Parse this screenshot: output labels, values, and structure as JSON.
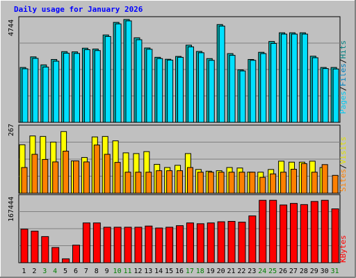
{
  "title": "Daily usage for January 2026",
  "colors": {
    "background": "#c0c0c0",
    "title": "#0000ff",
    "hits": "#00c0c0",
    "files": "#00a0c0",
    "pages": "#00c8f0",
    "visits": "#ffff00",
    "sites": "#ff8000",
    "kbytes": "#ff0000",
    "weekend_label": "#008000",
    "weekday_label": "#000000"
  },
  "legends": {
    "hits_files_pages": {
      "pages": "Pages",
      "sep1": "/",
      "files": "Files",
      "sep2": "/",
      "hits": "Hits"
    },
    "visits_sites": {
      "sites": "Sites",
      "sep": "/",
      "visits": "Visits"
    },
    "kbytes": "KBytes"
  },
  "chart_data": [
    {
      "type": "bar",
      "panel": "hits-files-pages",
      "ymax_label": "4744",
      "ylim": [
        0,
        4744
      ],
      "categories": [
        "1",
        "2",
        "3",
        "4",
        "5",
        "6",
        "7",
        "8",
        "9",
        "10",
        "11",
        "12",
        "13",
        "14",
        "15",
        "16",
        "17",
        "18",
        "19",
        "20",
        "21",
        "22",
        "23",
        "24",
        "25",
        "26",
        "27",
        "28",
        "29",
        "30",
        "31"
      ],
      "weekend_days": [
        "3",
        "4",
        "10",
        "11",
        "17",
        "18",
        "24",
        "25",
        "31"
      ],
      "series": [
        {
          "name": "Hits",
          "values": [
            2530,
            3020,
            2650,
            2900,
            3260,
            3250,
            3420,
            3380,
            4030,
            4610,
            4744,
            3900,
            3430,
            3000,
            2910,
            3040,
            3560,
            3270,
            2940,
            4510,
            3170,
            2420,
            2900,
            3230,
            3730,
            4130,
            4130,
            4130,
            3050,
            2530,
            2530
          ]
        },
        {
          "name": "Files",
          "values": [
            2530,
            3020,
            2650,
            2900,
            3260,
            3250,
            3420,
            3380,
            4030,
            4610,
            4744,
            3900,
            3430,
            3000,
            2910,
            3040,
            3560,
            3270,
            2940,
            4510,
            3170,
            2420,
            2900,
            3230,
            3730,
            4130,
            4130,
            4130,
            3050,
            2530,
            2530
          ]
        },
        {
          "name": "Pages",
          "values": [
            2470,
            2950,
            2550,
            2820,
            3190,
            3180,
            3350,
            3310,
            3960,
            4540,
            4680,
            3810,
            3370,
            2940,
            2870,
            3000,
            3480,
            3210,
            2860,
            4440,
            3090,
            2370,
            2860,
            3170,
            3640,
            4070,
            4070,
            4070,
            2980,
            2480,
            2460
          ]
        }
      ]
    },
    {
      "type": "bar",
      "panel": "visits-sites",
      "ymax_label": "267",
      "ylim": [
        0,
        267
      ],
      "categories": [
        "1",
        "2",
        "3",
        "4",
        "5",
        "6",
        "7",
        "8",
        "9",
        "10",
        "11",
        "12",
        "13",
        "14",
        "15",
        "16",
        "17",
        "18",
        "19",
        "20",
        "21",
        "22",
        "23",
        "24",
        "25",
        "26",
        "27",
        "28",
        "29",
        "30",
        "31"
      ],
      "series": [
        {
          "name": "Visits",
          "values": [
            198,
            234,
            232,
            209,
            252,
            132,
            146,
            230,
            232,
            214,
            165,
            162,
            170,
            118,
            105,
            114,
            162,
            97,
            90,
            92,
            105,
            103,
            86,
            86,
            97,
            131,
            127,
            127,
            131,
            105,
            0
          ]
        },
        {
          "name": "Sites",
          "values": [
            105,
            159,
            138,
            128,
            172,
            132,
            128,
            197,
            159,
            126,
            86,
            86,
            86,
            92,
            92,
            92,
            105,
            86,
            86,
            86,
            86,
            86,
            86,
            65,
            79,
            86,
            98,
            121,
            86,
            117,
            73
          ]
        }
      ]
    },
    {
      "type": "bar",
      "panel": "kbytes",
      "ymax_label": "167444",
      "ylim": [
        0,
        167444
      ],
      "categories": [
        "1",
        "2",
        "3",
        "4",
        "5",
        "6",
        "7",
        "8",
        "9",
        "10",
        "11",
        "12",
        "13",
        "14",
        "15",
        "16",
        "17",
        "18",
        "19",
        "20",
        "21",
        "22",
        "23",
        "24",
        "25",
        "26",
        "27",
        "28",
        "29",
        "30",
        "31"
      ],
      "series": [
        {
          "name": "KBytes",
          "values": [
            86000,
            81000,
            67000,
            39000,
            10000,
            45000,
            102000,
            102000,
            91000,
            91000,
            91000,
            91000,
            94000,
            89000,
            91000,
            95000,
            102000,
            100000,
            102000,
            105000,
            106000,
            104000,
            120000,
            160000,
            160000,
            148000,
            152000,
            149000,
            157000,
            160000,
            138000
          ]
        }
      ]
    }
  ]
}
